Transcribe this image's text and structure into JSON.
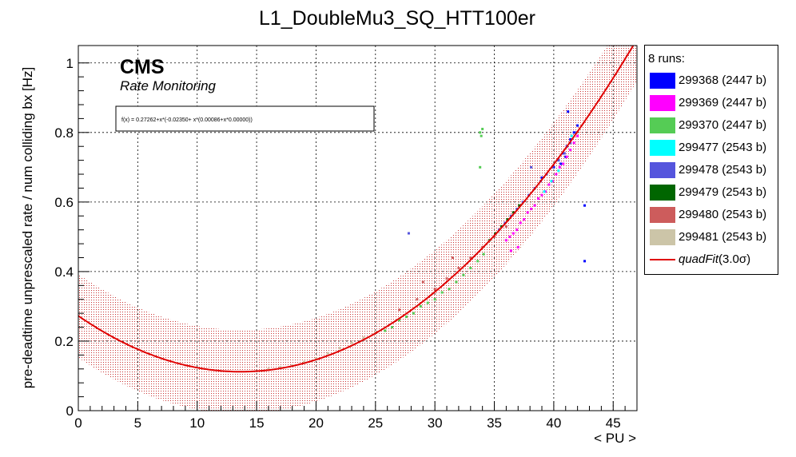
{
  "chart_data": {
    "type": "scatter",
    "title": "L1_DoubleMu3_SQ_HTT100er",
    "xlabel": "< PU >",
    "ylabel": "pre-deadtime unprescaled rate / num colliding bx [Hz]",
    "xlim": [
      0,
      47
    ],
    "ylim": [
      0,
      1.05
    ],
    "xticks": [
      "0",
      "5",
      "10",
      "15",
      "20",
      "25",
      "30",
      "35",
      "40",
      "45"
    ],
    "yticks": [
      "0",
      "0.2",
      "0.4",
      "0.6",
      "0.8",
      "1"
    ],
    "grid": true,
    "legend_position": "right",
    "experiment": "CMS",
    "subtitle": "Rate Monitoring",
    "fit_text": "f(x) = 0.27262+x*(-0.02350+ x*(0.00086+x*0.00000))",
    "fit": {
      "name": "quadFit",
      "label_suffix": "(3.0σ)",
      "coefficients": [
        0.27262,
        -0.0235,
        0.00086,
        0.0
      ],
      "band_halfwidth": 0.12,
      "color": "#e00000",
      "x_range": [
        0,
        47
      ]
    },
    "legend_header": "8 runs:",
    "series": [
      {
        "name": "299368 (2447 b)",
        "color": "#0000ff",
        "x": [
          40.0,
          40.4,
          40.8,
          41.1,
          41.4,
          41.7,
          42.0,
          41.2,
          41.0,
          40.6,
          39.0,
          42.6,
          42.6
        ],
        "y": [
          0.7,
          0.72,
          0.74,
          0.76,
          0.78,
          0.8,
          0.82,
          0.86,
          0.73,
          0.71,
          0.67,
          0.59,
          0.43
        ]
      },
      {
        "name": "299369 (2447 b)",
        "color": "#ff00ff",
        "x": [
          36.0,
          36.3,
          36.6,
          36.9,
          37.2,
          37.5,
          37.8,
          38.1,
          38.4,
          38.7,
          39.0,
          39.3,
          39.6,
          39.9,
          40.2,
          40.5,
          40.8,
          41.1,
          41.4,
          41.7,
          42.0,
          36.4,
          37.0
        ],
        "y": [
          0.49,
          0.5,
          0.51,
          0.52,
          0.54,
          0.55,
          0.57,
          0.58,
          0.59,
          0.61,
          0.62,
          0.63,
          0.65,
          0.66,
          0.68,
          0.7,
          0.71,
          0.73,
          0.75,
          0.77,
          0.79,
          0.46,
          0.47
        ]
      },
      {
        "name": "299370 (2447 b)",
        "color": "#55cc55",
        "x": [
          25.8,
          26.4,
          27.0,
          27.6,
          28.2,
          28.8,
          29.4,
          30.0,
          30.6,
          31.2,
          31.8,
          32.4,
          33.0,
          33.6,
          34.1,
          33.8,
          34.0,
          33.9,
          33.8
        ],
        "y": [
          0.23,
          0.24,
          0.26,
          0.27,
          0.28,
          0.3,
          0.31,
          0.32,
          0.34,
          0.35,
          0.37,
          0.39,
          0.41,
          0.43,
          0.45,
          0.8,
          0.81,
          0.79,
          0.7
        ]
      },
      {
        "name": "299477 (2543 b)",
        "color": "#00ffff",
        "x": [
          39.2,
          39.8,
          40.4,
          41.5
        ],
        "y": [
          0.63,
          0.66,
          0.69,
          0.79
        ]
      },
      {
        "name": "299478 (2543 b)",
        "color": "#5555dd",
        "x": [
          35.4,
          35.9,
          36.4,
          36.9,
          37.4,
          37.9,
          38.4,
          38.9,
          39.4,
          39.9,
          40.4,
          40.9,
          41.4,
          41.9,
          27.8,
          38.1
        ],
        "y": [
          0.52,
          0.54,
          0.56,
          0.58,
          0.6,
          0.62,
          0.64,
          0.66,
          0.68,
          0.7,
          0.72,
          0.74,
          0.77,
          0.8,
          0.51,
          0.7
        ]
      },
      {
        "name": "299479 (2543 b)",
        "color": "#006600",
        "x": [
          34.6,
          35.1,
          35.6,
          36.1,
          36.6,
          37.1
        ],
        "y": [
          0.49,
          0.51,
          0.53,
          0.55,
          0.57,
          0.59
        ]
      },
      {
        "name": "299480 (2543 b)",
        "color": "#cd5c5c",
        "x": [
          27.0,
          28.5,
          30.0,
          31.0,
          32.0,
          33.0,
          34.0,
          35.0,
          36.0,
          29.0,
          31.5
        ],
        "y": [
          0.29,
          0.32,
          0.35,
          0.38,
          0.41,
          0.44,
          0.47,
          0.5,
          0.53,
          0.37,
          0.44
        ]
      },
      {
        "name": "299481 (2543 b)",
        "color": "#ccc5a8",
        "x": [
          16.0,
          17.0,
          18.0,
          19.0,
          20.0,
          21.0,
          22.0,
          23.0,
          24.0,
          25.0
        ],
        "y": [
          0.12,
          0.125,
          0.13,
          0.14,
          0.15,
          0.165,
          0.18,
          0.195,
          0.21,
          0.225
        ]
      }
    ]
  }
}
